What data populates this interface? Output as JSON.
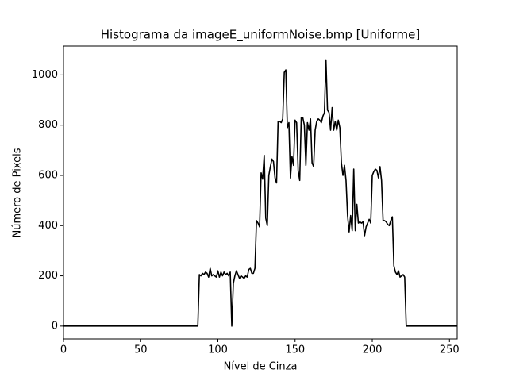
{
  "chart_data": {
    "type": "line",
    "title": "Histograma da imageE_uniformNoise.bmp [Uniforme]",
    "xlabel": "Nível de Cinza",
    "ylabel": "Número de Pixels",
    "color": "#000000",
    "xlim": [
      0,
      255
    ],
    "ylim": [
      -51,
      1115
    ],
    "xticks": [
      0,
      50,
      100,
      150,
      200,
      250
    ],
    "yticks": [
      0,
      200,
      400,
      600,
      800,
      1000
    ],
    "x": [
      0,
      1,
      2,
      3,
      4,
      5,
      6,
      7,
      8,
      9,
      10,
      11,
      12,
      13,
      14,
      15,
      16,
      17,
      18,
      19,
      20,
      21,
      22,
      23,
      24,
      25,
      26,
      27,
      28,
      29,
      30,
      31,
      32,
      33,
      34,
      35,
      36,
      37,
      38,
      39,
      40,
      41,
      42,
      43,
      44,
      45,
      46,
      47,
      48,
      49,
      50,
      51,
      52,
      53,
      54,
      55,
      56,
      57,
      58,
      59,
      60,
      61,
      62,
      63,
      64,
      65,
      66,
      67,
      68,
      69,
      70,
      71,
      72,
      73,
      74,
      75,
      76,
      77,
      78,
      79,
      80,
      81,
      82,
      83,
      84,
      85,
      86,
      87,
      88,
      89,
      90,
      91,
      92,
      93,
      94,
      95,
      96,
      97,
      98,
      99,
      100,
      101,
      102,
      103,
      104,
      105,
      106,
      107,
      108,
      109,
      110,
      111,
      112,
      113,
      114,
      115,
      116,
      117,
      118,
      119,
      120,
      121,
      122,
      123,
      124,
      125,
      126,
      127,
      128,
      129,
      130,
      131,
      132,
      133,
      134,
      135,
      136,
      137,
      138,
      139,
      140,
      141,
      142,
      143,
      144,
      145,
      146,
      147,
      148,
      149,
      150,
      151,
      152,
      153,
      154,
      155,
      156,
      157,
      158,
      159,
      160,
      161,
      162,
      163,
      164,
      165,
      166,
      167,
      168,
      169,
      170,
      171,
      172,
      173,
      174,
      175,
      176,
      177,
      178,
      179,
      180,
      181,
      182,
      183,
      184,
      185,
      186,
      187,
      188,
      189,
      190,
      191,
      192,
      193,
      194,
      195,
      196,
      197,
      198,
      199,
      200,
      201,
      202,
      203,
      204,
      205,
      206,
      207,
      208,
      209,
      210,
      211,
      212,
      213,
      214,
      215,
      216,
      217,
      218,
      219,
      220,
      221,
      222,
      223,
      224,
      225,
      226,
      227,
      228,
      229,
      230,
      231,
      232,
      233,
      234,
      235,
      236,
      237,
      238,
      239,
      240,
      241,
      242,
      243,
      244,
      245,
      246,
      247,
      248,
      249,
      250,
      251,
      252,
      253,
      254,
      255
    ],
    "values": [
      0,
      0,
      0,
      0,
      0,
      0,
      0,
      0,
      0,
      0,
      0,
      0,
      0,
      0,
      0,
      0,
      0,
      0,
      0,
      0,
      0,
      0,
      0,
      0,
      0,
      0,
      0,
      0,
      0,
      0,
      0,
      0,
      0,
      0,
      0,
      0,
      0,
      0,
      0,
      0,
      0,
      0,
      0,
      0,
      0,
      0,
      0,
      0,
      0,
      0,
      0,
      0,
      0,
      0,
      0,
      0,
      0,
      0,
      0,
      0,
      0,
      0,
      0,
      0,
      0,
      0,
      0,
      0,
      0,
      0,
      0,
      0,
      0,
      0,
      0,
      0,
      0,
      0,
      0,
      0,
      0,
      0,
      0,
      0,
      0,
      0,
      0,
      0,
      205,
      200,
      210,
      205,
      215,
      210,
      195,
      230,
      200,
      205,
      200,
      195,
      220,
      195,
      215,
      200,
      215,
      205,
      210,
      200,
      215,
      0,
      170,
      200,
      220,
      205,
      190,
      200,
      195,
      190,
      200,
      195,
      225,
      230,
      210,
      210,
      230,
      420,
      410,
      395,
      610,
      585,
      680,
      430,
      400,
      600,
      635,
      665,
      655,
      590,
      570,
      815,
      815,
      810,
      825,
      1010,
      1020,
      790,
      810,
      590,
      675,
      640,
      820,
      810,
      620,
      580,
      830,
      830,
      800,
      640,
      810,
      780,
      825,
      650,
      635,
      780,
      815,
      825,
      820,
      810,
      835,
      850,
      1060,
      860,
      850,
      780,
      870,
      780,
      815,
      780,
      820,
      790,
      650,
      600,
      640,
      580,
      440,
      375,
      440,
      380,
      625,
      380,
      485,
      410,
      415,
      410,
      415,
      360,
      395,
      410,
      425,
      410,
      600,
      615,
      625,
      620,
      590,
      635,
      580,
      420,
      420,
      415,
      405,
      400,
      420,
      435,
      240,
      215,
      205,
      220,
      195,
      200,
      205,
      195,
      0,
      0,
      0,
      0,
      0,
      0,
      0,
      0,
      0,
      0,
      0,
      0,
      0,
      0,
      0,
      0,
      0,
      0,
      0,
      0,
      0,
      0,
      0,
      0,
      0,
      0,
      0,
      0,
      0,
      0,
      0,
      0,
      0,
      0
    ]
  }
}
